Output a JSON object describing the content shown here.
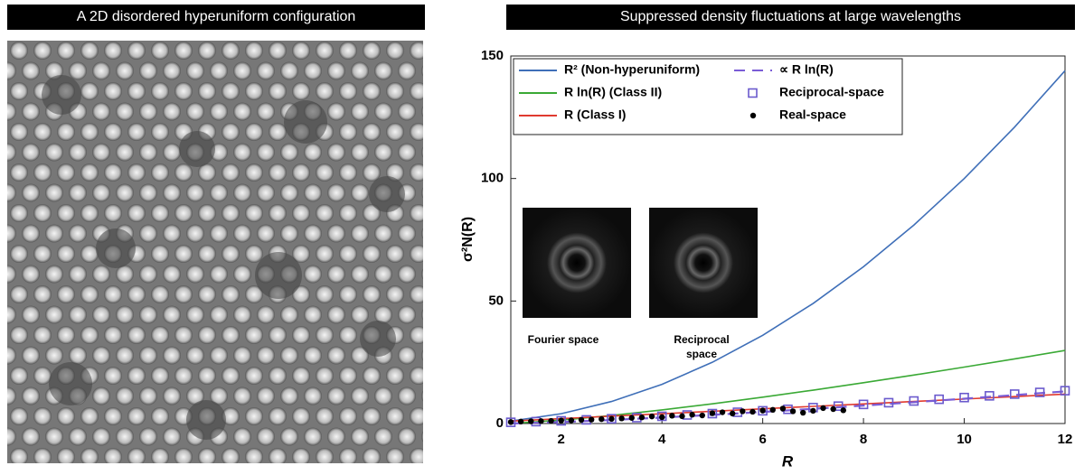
{
  "left_panel": {
    "title": "A 2D disordered hyperuniform configuration"
  },
  "chart_data": {
    "type": "line",
    "title": "Suppressed density fluctuations at large wavelengths",
    "x_label": "R",
    "y_label": "σ²N(R)",
    "xlim": [
      1,
      12
    ],
    "xticks": [
      2,
      4,
      6,
      8,
      10,
      12
    ],
    "ylim": [
      0,
      150
    ],
    "yticks": [
      0,
      50,
      100,
      150
    ],
    "annotations": [
      "Fourier space",
      "Reciprocal space"
    ],
    "legend": "upper left",
    "series": [
      {
        "name": "R² (Non-hyperuniform)",
        "color": "#3f6fb8",
        "style": "line",
        "x": [
          1,
          2,
          3,
          4,
          5,
          6,
          7,
          8,
          9,
          10,
          11,
          12
        ],
        "values": [
          1,
          4,
          9,
          16,
          25,
          36,
          49,
          64,
          81,
          100,
          121,
          144
        ]
      },
      {
        "name": "R ln(R) (Class II)",
        "color": "#3aa935",
        "style": "line",
        "x": [
          1,
          2,
          3,
          4,
          5,
          6,
          7,
          8,
          9,
          10,
          11,
          12
        ],
        "values": [
          0,
          1.39,
          3.3,
          5.55,
          8.05,
          10.75,
          13.62,
          16.64,
          19.78,
          23.03,
          26.38,
          29.82
        ]
      },
      {
        "name": "R (Class I)",
        "color": "#e03a2f",
        "style": "line",
        "x": [
          1,
          2,
          3,
          4,
          5,
          6,
          7,
          8,
          9,
          10,
          11,
          12
        ],
        "values": [
          1,
          2,
          3,
          4,
          5,
          6,
          7,
          8,
          9,
          10,
          11,
          12
        ]
      },
      {
        "name": "∝ R ln(R)",
        "color": "#7a5cd6",
        "style": "dashed",
        "x": [
          1,
          2,
          3,
          4,
          5,
          6,
          7,
          8,
          9,
          10,
          11,
          12
        ],
        "values": [
          0,
          0.61,
          1.45,
          2.44,
          3.54,
          4.73,
          5.99,
          7.32,
          8.7,
          10.13,
          11.61,
          13.12
        ]
      },
      {
        "name": "Reciprocal-space",
        "color": "#6a5acd",
        "style": "square",
        "x": [
          1,
          1.5,
          2,
          2.5,
          3,
          3.5,
          4,
          4.5,
          5,
          5.5,
          6,
          6.5,
          7,
          7.5,
          8,
          8.5,
          9,
          9.5,
          10,
          10.5,
          11,
          11.5,
          12
        ],
        "values": [
          0.5,
          0.77,
          1.1,
          1.5,
          1.95,
          2.4,
          2.95,
          3.5,
          4.05,
          4.6,
          5.2,
          5.8,
          6.5,
          7.1,
          7.8,
          8.5,
          9.2,
          9.9,
          10.6,
          11.3,
          12,
          12.7,
          13.4
        ]
      },
      {
        "name": "Real-space",
        "color": "#000000",
        "style": "dot",
        "x": [
          1,
          1.2,
          1.4,
          1.6,
          1.8,
          2,
          2.2,
          2.4,
          2.6,
          2.8,
          3,
          3.2,
          3.4,
          3.6,
          3.8,
          4,
          4.2,
          4.4,
          4.6,
          4.8,
          5,
          5.2,
          5.4,
          5.6,
          5.8,
          6,
          6.2,
          6.4,
          6.6,
          6.8,
          7,
          7.2,
          7.4,
          7.6
        ],
        "values": [
          0.6,
          0.8,
          0.9,
          1,
          1.1,
          1.2,
          1.3,
          1.5,
          1.6,
          1.8,
          1.9,
          2.1,
          2.3,
          2.5,
          2.9,
          2.6,
          3.2,
          3,
          3.6,
          3.3,
          4.2,
          4.6,
          4.1,
          5,
          4.8,
          5.3,
          5.6,
          6.1,
          5,
          4.4,
          5.2,
          6.3,
          5.9,
          5.4
        ]
      }
    ]
  }
}
